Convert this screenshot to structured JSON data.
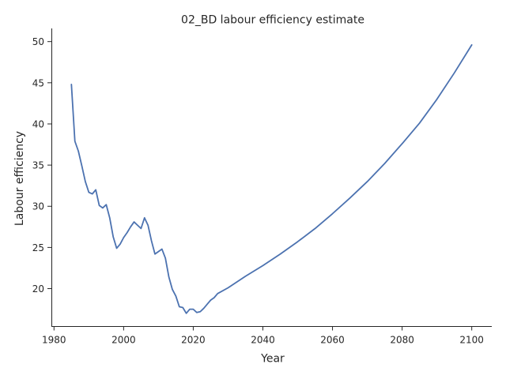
{
  "chart_data": {
    "type": "line",
    "title": "02_BD labour efficiency estimate",
    "xlabel": "Year",
    "ylabel": "Labour efficiency",
    "xlim": [
      1979.25,
      2105.75
    ],
    "ylim": [
      15.4,
      51.6
    ],
    "xticks": [
      1980,
      2000,
      2020,
      2040,
      2060,
      2080,
      2100
    ],
    "yticks": [
      20,
      25,
      30,
      35,
      40,
      45,
      50
    ],
    "grid": false,
    "line_color": "#4c72b0",
    "series": [
      {
        "x": [
          1985,
          1986,
          1987,
          1988,
          1989,
          1990,
          1991,
          1992,
          1993,
          1994,
          1995,
          1996,
          1997,
          1998,
          1999,
          2000,
          2001,
          2002,
          2003,
          2004,
          2005,
          2006,
          2007,
          2008,
          2009,
          2010,
          2011,
          2012,
          2013,
          2014,
          2015,
          2016,
          2017,
          2018,
          2019,
          2020,
          2021,
          2022,
          2023,
          2024,
          2025,
          2026,
          2027,
          2030,
          2035,
          2040,
          2045,
          2050,
          2055,
          2060,
          2065,
          2070,
          2075,
          2080,
          2085,
          2090,
          2095,
          2100
        ],
        "values": [
          44.8,
          37.9,
          36.7,
          34.9,
          33.0,
          31.7,
          31.5,
          32.0,
          30.1,
          29.8,
          30.2,
          28.6,
          26.3,
          24.9,
          25.4,
          26.2,
          26.8,
          27.5,
          28.1,
          27.7,
          27.3,
          28.6,
          27.7,
          25.8,
          24.2,
          24.5,
          24.8,
          23.7,
          21.4,
          19.9,
          19.1,
          17.8,
          17.7,
          17.0,
          17.5,
          17.5,
          17.1,
          17.2,
          17.6,
          18.1,
          18.6,
          18.9,
          19.4,
          20.1,
          21.5,
          22.8,
          24.2,
          25.7,
          27.3,
          29.1,
          31.0,
          33.0,
          35.2,
          37.6,
          40.1,
          43.0,
          46.2,
          49.6
        ]
      }
    ]
  }
}
